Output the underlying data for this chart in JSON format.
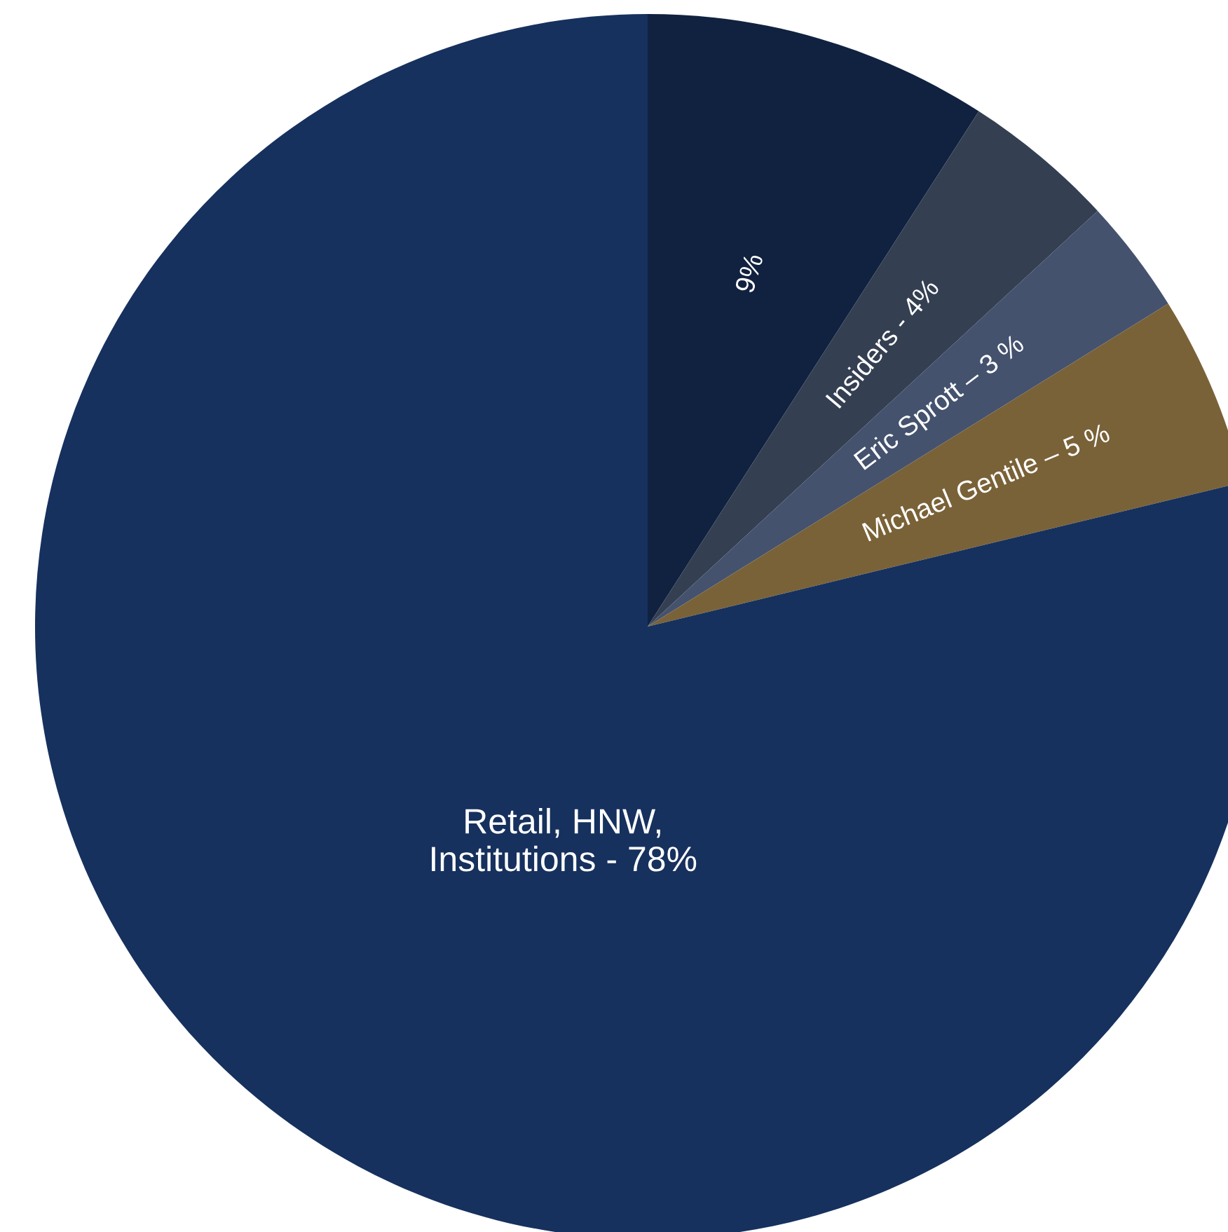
{
  "chart_data": {
    "type": "pie",
    "categories": [
      "9%",
      "Insiders - 4%",
      "Eric Sprott – 3 %",
      "Michael Gentile – 5 %",
      "Retail, HNW,\nInstitutions - 78%"
    ],
    "values": [
      9,
      4,
      3,
      5,
      78
    ],
    "colors": [
      "#112240",
      "#343f52",
      "#44526e",
      "#7a6238",
      "#16315e"
    ],
    "legend": false
  }
}
